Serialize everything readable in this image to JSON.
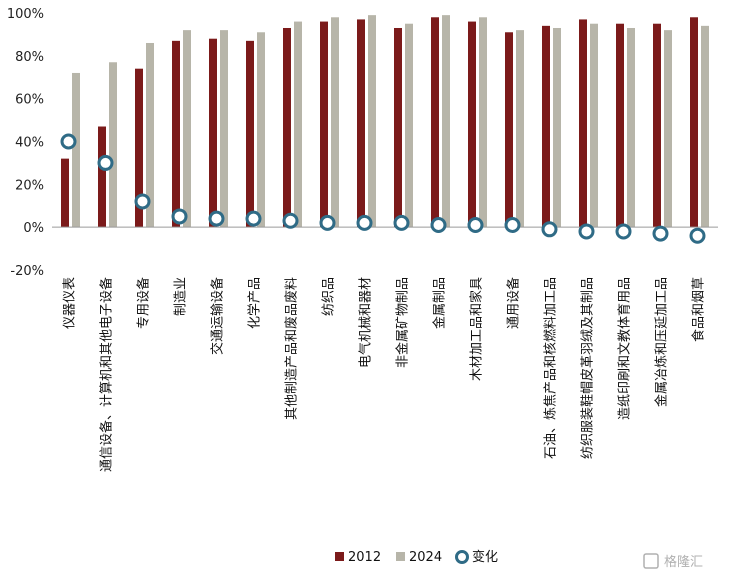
{
  "chart_data": {
    "type": "bar",
    "categories": [
      "仪器仪表",
      "通信设备、计算机和其他电子设备",
      "专用设备",
      "制造业",
      "交通运输设备",
      "化学产品",
      "其他制造产品和废品废料",
      "纺织品",
      "电气机械和器材",
      "非金属矿物制品",
      "金属制品",
      "木材加工品和家具",
      "通用设备",
      "石油、炼焦产品和核燃料加工品",
      "纺织服装鞋帽皮革羽绒及其制品",
      "造纸印刷和文教体育用品",
      "金属冶炼和压延加工品",
      "食品和烟草"
    ],
    "series": [
      {
        "name": "2012",
        "type": "bar",
        "color": "#7b1a1a",
        "values": [
          32,
          47,
          74,
          87,
          88,
          87,
          93,
          96,
          97,
          93,
          98,
          96,
          91,
          94,
          97,
          95,
          95,
          98
        ]
      },
      {
        "name": "2024",
        "type": "bar",
        "color": "#b7b5a9",
        "values": [
          72,
          77,
          86,
          92,
          92,
          91,
          96,
          98,
          99,
          95,
          99,
          98,
          92,
          93,
          95,
          93,
          92,
          94
        ]
      },
      {
        "name": "变化",
        "type": "scatter",
        "color": "#2f6b86",
        "values": [
          40,
          30,
          12,
          5,
          4,
          4,
          3,
          2,
          2,
          2,
          1,
          1,
          1,
          -1,
          -2,
          -2,
          -3,
          -4
        ]
      }
    ],
    "ylim": [
      -20,
      100
    ],
    "yticks": [
      "-20%",
      "0%",
      "20%",
      "40%",
      "60%",
      "80%",
      "100%"
    ],
    "legend_position": "bottom"
  },
  "watermark": "格隆汇"
}
